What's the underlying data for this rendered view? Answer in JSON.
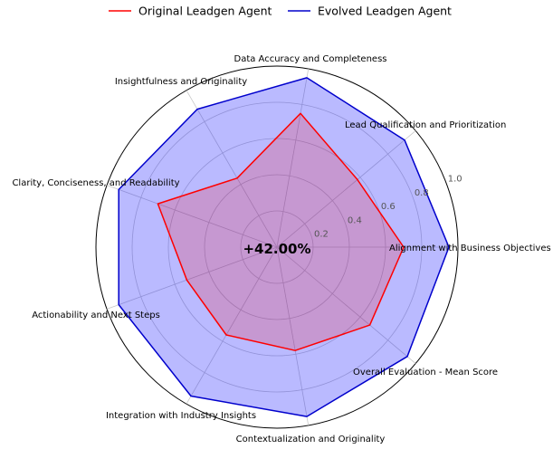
{
  "chart_data": {
    "type": "radar",
    "title": "",
    "center_label": "+42.00%",
    "legend_position": "top-center",
    "grid": true,
    "rlim": [
      0,
      1.0
    ],
    "rticks": [
      "0.2",
      "0.4",
      "0.6",
      "0.8",
      "1.0"
    ],
    "rtick_values": [
      0.2,
      0.4,
      0.6,
      0.8,
      1.0
    ],
    "categories": [
      "Alignment with Business Objectives",
      "Lead Qualification and Prioritization",
      "Data Accuracy and Completeness",
      "Insightfulness and Originality",
      "Clarity, Conciseness, and Readability",
      "Actionability and Next Steps",
      "Integration with Industry Insights",
      "Contextualization and Originality",
      "Overall Evaluation - Mean Score"
    ],
    "series": [
      {
        "name": "Original Leadgen Agent",
        "color": "#ff0000",
        "fill": null,
        "values": [
          0.7,
          0.58,
          0.75,
          0.44,
          0.7,
          0.53,
          0.56,
          0.58,
          0.67
        ]
      },
      {
        "name": "Evolved Leadgen Agent",
        "color": "#0000cc",
        "fill": "#0000ff",
        "values": [
          0.95,
          0.92,
          0.95,
          0.88,
          0.93,
          0.93,
          0.95,
          0.95,
          0.94
        ]
      }
    ]
  }
}
